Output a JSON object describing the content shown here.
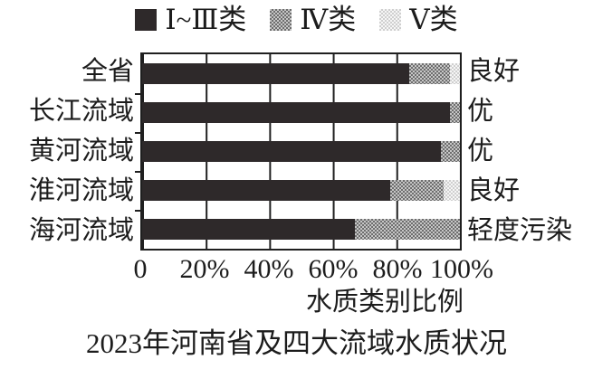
{
  "legend": {
    "items": [
      {
        "label": "Ⅰ~Ⅲ类",
        "swatch": "solid-dark-square"
      },
      {
        "label": "Ⅳ类",
        "swatch": "gray-checker-square"
      },
      {
        "label": "Ⅴ类",
        "swatch": "light-dotted-square"
      }
    ]
  },
  "colors": {
    "class_1_3": "#2e292a",
    "class_4": "#8e8e8e",
    "class_5": "#dedede",
    "frame": "#1f1f1f",
    "background": "#ffffff"
  },
  "chart_data": {
    "type": "bar",
    "subtype": "horizontal-stacked",
    "title": "2023年河南省及四大流域水质状况",
    "xlabel": "水质类别比例",
    "ylabel": "",
    "xlim": [
      0,
      100
    ],
    "x_ticks": [
      "0",
      "20%",
      "40%",
      "60%",
      "80%",
      "100%"
    ],
    "x_tick_positions": [
      0,
      20,
      40,
      60,
      80,
      100
    ],
    "grid": "vertical-on",
    "legend_position": "top",
    "categories": [
      "全省",
      "长江流域",
      "黄河流域",
      "淮河流域",
      "海河流域"
    ],
    "status_labels": [
      "良好",
      "优",
      "优",
      "良好",
      "轻度污染"
    ],
    "series": [
      {
        "name": "Ⅰ~Ⅲ类",
        "values": [
          84,
          97,
          94,
          78,
          67
        ]
      },
      {
        "name": "Ⅳ类",
        "values": [
          13,
          3,
          6,
          17,
          33
        ]
      },
      {
        "name": "Ⅴ类",
        "values": [
          3,
          0,
          0,
          5,
          0
        ]
      }
    ]
  }
}
